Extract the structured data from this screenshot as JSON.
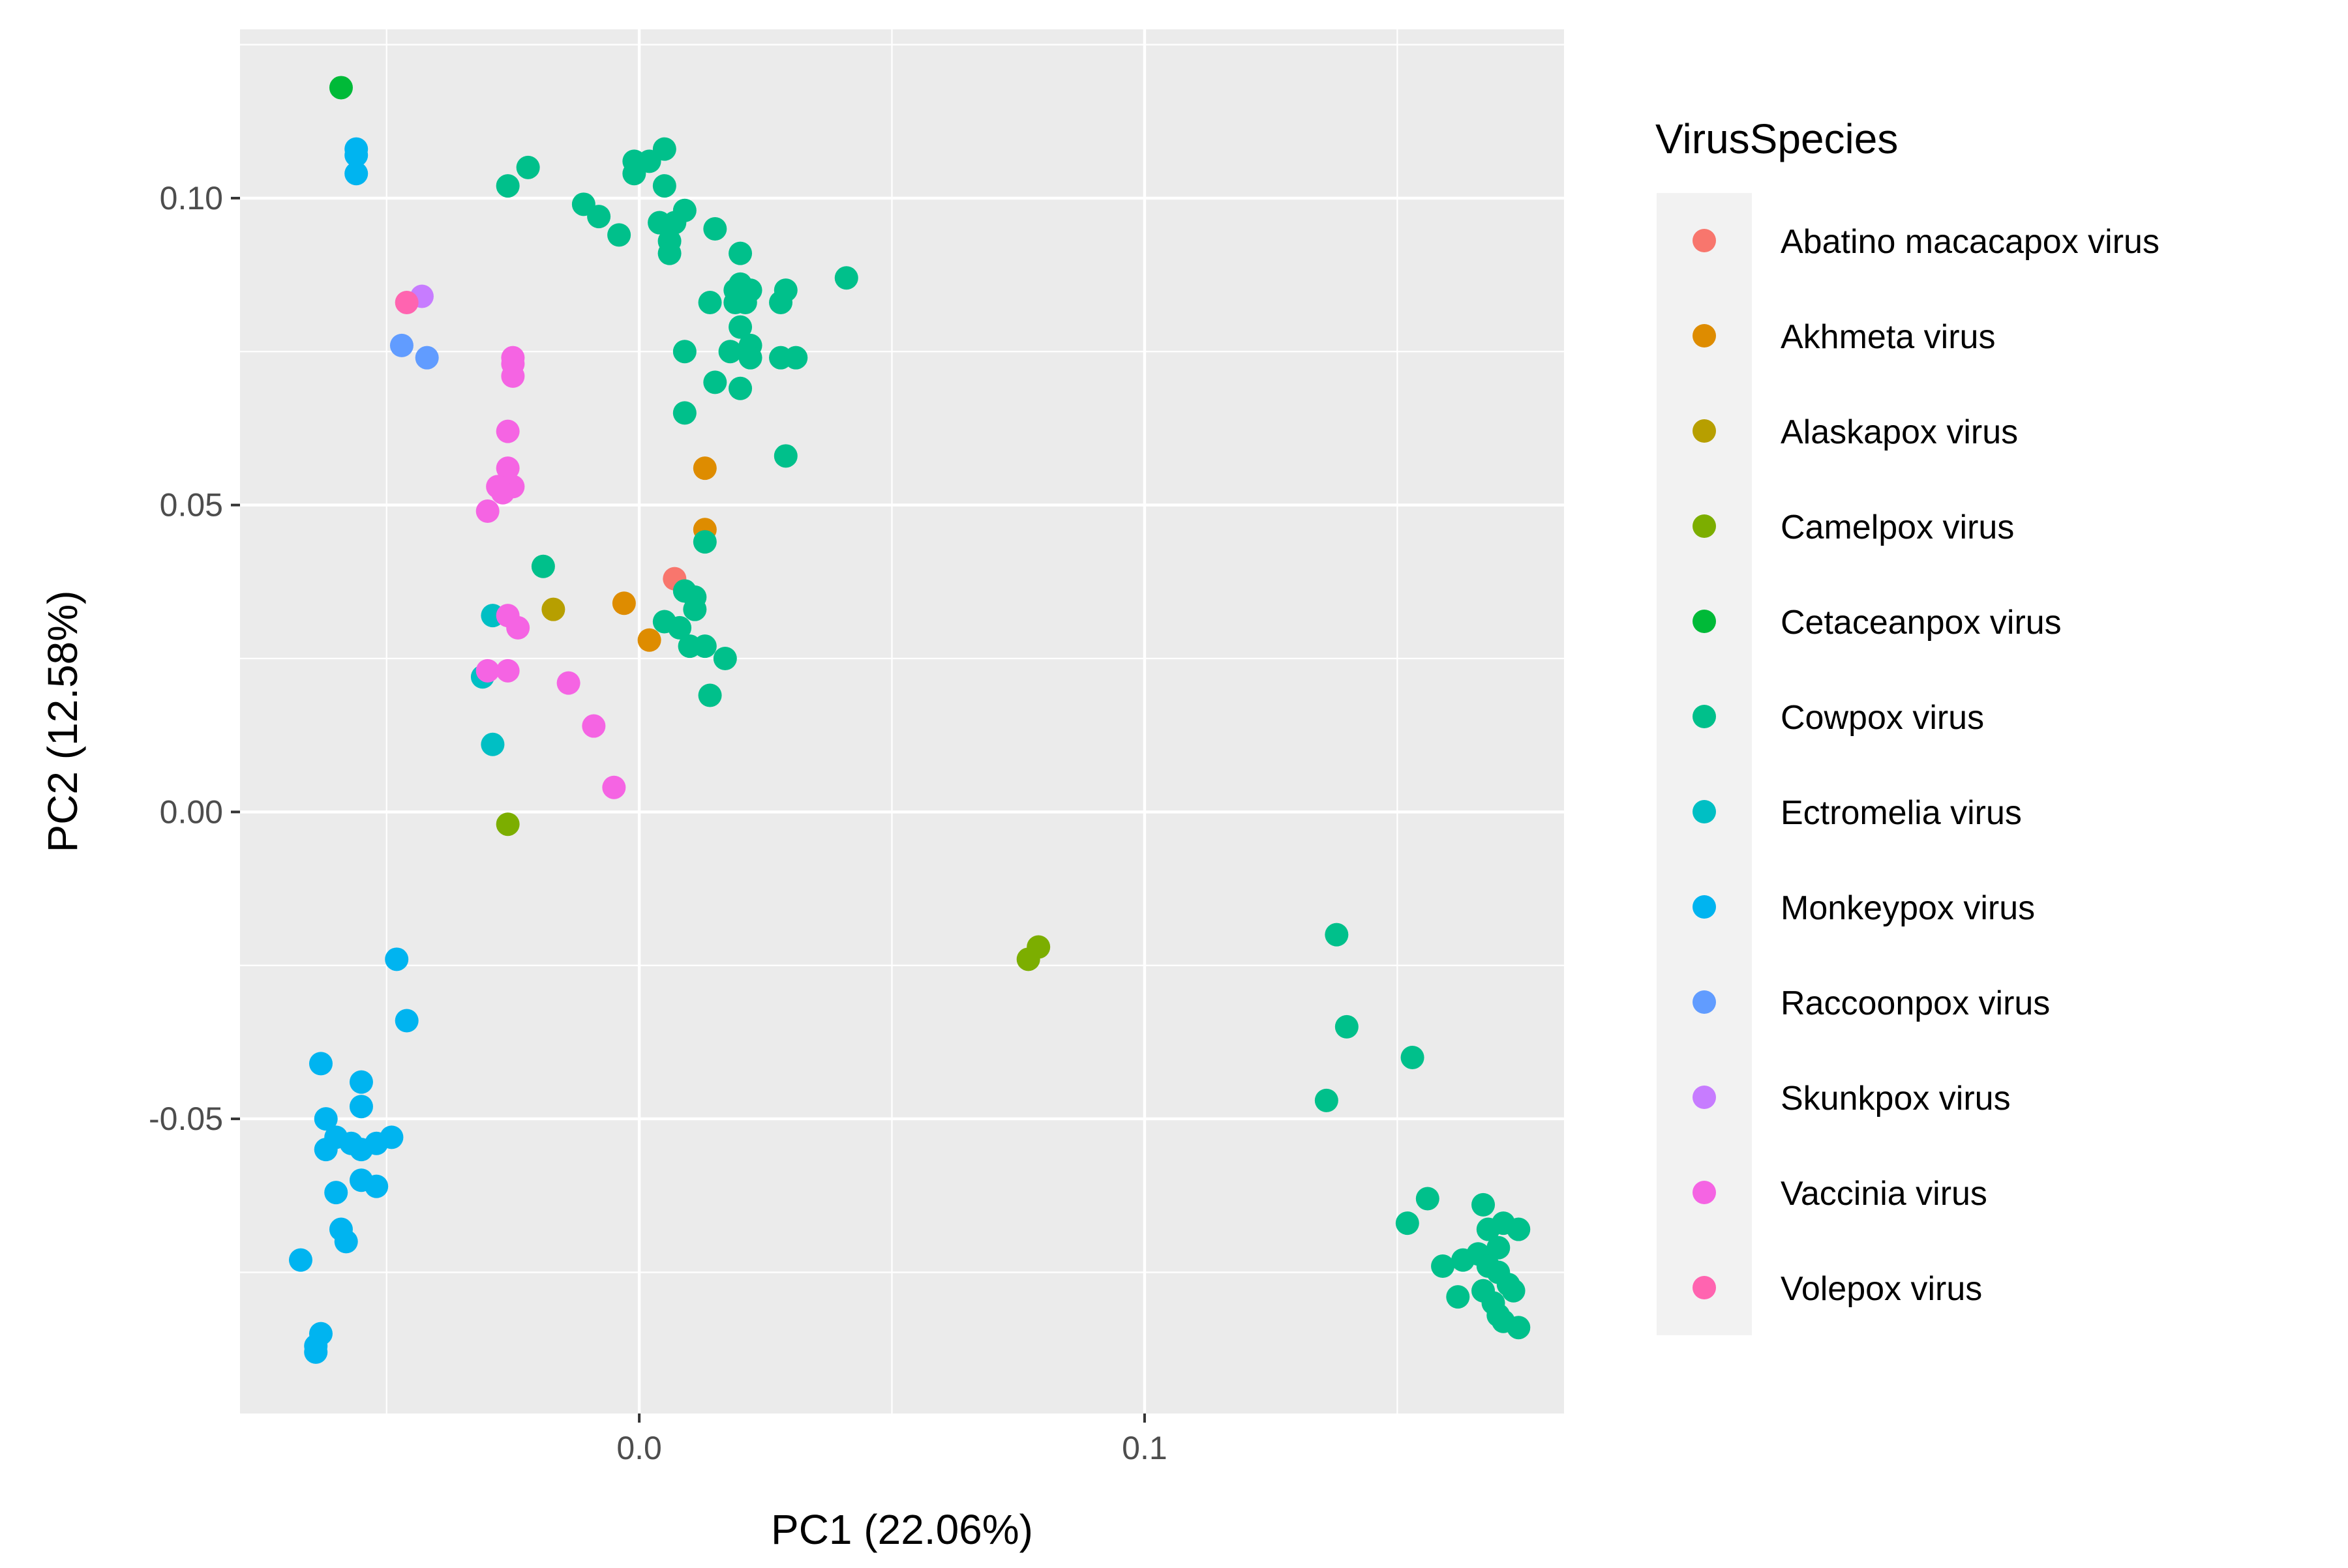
{
  "chart_data": {
    "type": "scatter",
    "xlabel": "PC1 (22.06%)",
    "ylabel": "PC2 (12.58%)",
    "xlim": [
      -0.079,
      0.183
    ],
    "ylim": [
      -0.098,
      0.1275
    ],
    "x_ticks": [
      {
        "value": 0.0,
        "label": "0.0"
      },
      {
        "value": 0.1,
        "label": "0.1"
      }
    ],
    "y_ticks": [
      {
        "value": -0.05,
        "label": "-0.05"
      },
      {
        "value": 0.0,
        "label": "0.00"
      },
      {
        "value": 0.05,
        "label": "0.05"
      },
      {
        "value": 0.1,
        "label": "0.10"
      }
    ],
    "grid": true,
    "legend": {
      "title": "VirusSpecies",
      "position": "right"
    },
    "series": [
      {
        "name": "Abatino macacapox virus",
        "color": "#F8766D",
        "points": [
          [
            0.007,
            0.038
          ]
        ]
      },
      {
        "name": "Akhmeta virus",
        "color": "#DE8C00",
        "points": [
          [
            0.013,
            0.056
          ],
          [
            0.013,
            0.046
          ],
          [
            -0.003,
            0.034
          ],
          [
            0.002,
            0.028
          ]
        ]
      },
      {
        "name": "Alaskapox virus",
        "color": "#B79F00",
        "points": [
          [
            -0.017,
            0.033
          ]
        ]
      },
      {
        "name": "Camelpox virus",
        "color": "#7CAE00",
        "points": [
          [
            -0.026,
            -0.002
          ],
          [
            0.079,
            -0.022
          ],
          [
            0.077,
            -0.024
          ]
        ]
      },
      {
        "name": "Cetaceanpox virus",
        "color": "#00BA38",
        "points": [
          [
            -0.059,
            0.118
          ]
        ]
      },
      {
        "name": "Cowpox virus",
        "color": "#00C08B",
        "points": [
          [
            -0.026,
            0.102
          ],
          [
            -0.022,
            0.105
          ],
          [
            -0.011,
            0.099
          ],
          [
            -0.008,
            0.097
          ],
          [
            -0.004,
            0.094
          ],
          [
            -0.001,
            0.106
          ],
          [
            -0.001,
            0.104
          ],
          [
            0.002,
            0.106
          ],
          [
            0.005,
            0.108
          ],
          [
            0.005,
            0.102
          ],
          [
            0.004,
            0.096
          ],
          [
            0.007,
            0.096
          ],
          [
            0.006,
            0.093
          ],
          [
            0.006,
            0.091
          ],
          [
            0.009,
            0.098
          ],
          [
            0.015,
            0.095
          ],
          [
            0.02,
            0.091
          ],
          [
            0.014,
            0.083
          ],
          [
            0.019,
            0.085
          ],
          [
            0.02,
            0.086
          ],
          [
            0.019,
            0.083
          ],
          [
            0.021,
            0.083
          ],
          [
            0.022,
            0.085
          ],
          [
            0.02,
            0.079
          ],
          [
            0.022,
            0.076
          ],
          [
            0.018,
            0.075
          ],
          [
            0.022,
            0.074
          ],
          [
            0.009,
            0.075
          ],
          [
            0.015,
            0.07
          ],
          [
            0.02,
            0.069
          ],
          [
            0.028,
            0.083
          ],
          [
            0.029,
            0.085
          ],
          [
            0.028,
            0.074
          ],
          [
            0.031,
            0.074
          ],
          [
            0.041,
            0.087
          ],
          [
            0.009,
            0.065
          ],
          [
            0.029,
            0.058
          ],
          [
            0.013,
            0.044
          ],
          [
            -0.019,
            0.04
          ],
          [
            0.009,
            0.036
          ],
          [
            0.011,
            0.035
          ],
          [
            0.005,
            0.031
          ],
          [
            0.008,
            0.03
          ],
          [
            0.011,
            0.033
          ],
          [
            0.01,
            0.027
          ],
          [
            0.013,
            0.027
          ],
          [
            0.017,
            0.025
          ],
          [
            0.014,
            0.019
          ],
          [
            0.138,
            -0.02
          ],
          [
            0.14,
            -0.035
          ],
          [
            0.153,
            -0.04
          ],
          [
            0.136,
            -0.047
          ],
          [
            0.152,
            -0.067
          ],
          [
            0.156,
            -0.063
          ],
          [
            0.167,
            -0.064
          ],
          [
            0.168,
            -0.068
          ],
          [
            0.171,
            -0.067
          ],
          [
            0.174,
            -0.068
          ],
          [
            0.159,
            -0.074
          ],
          [
            0.163,
            -0.073
          ],
          [
            0.166,
            -0.072
          ],
          [
            0.17,
            -0.071
          ],
          [
            0.168,
            -0.074
          ],
          [
            0.17,
            -0.075
          ],
          [
            0.172,
            -0.077
          ],
          [
            0.162,
            -0.079
          ],
          [
            0.167,
            -0.078
          ],
          [
            0.169,
            -0.08
          ],
          [
            0.17,
            -0.082
          ],
          [
            0.171,
            -0.083
          ],
          [
            0.173,
            -0.078
          ],
          [
            0.174,
            -0.084
          ]
        ]
      },
      {
        "name": "Ectromelia virus",
        "color": "#00BFC4",
        "points": [
          [
            -0.029,
            0.032
          ],
          [
            -0.031,
            0.022
          ],
          [
            -0.029,
            0.011
          ]
        ]
      },
      {
        "name": "Monkeypox virus",
        "color": "#00B4F0",
        "points": [
          [
            -0.056,
            0.108
          ],
          [
            -0.056,
            0.107
          ],
          [
            -0.056,
            0.104
          ],
          [
            -0.048,
            -0.024
          ],
          [
            -0.046,
            -0.034
          ],
          [
            -0.063,
            -0.041
          ],
          [
            -0.055,
            -0.044
          ],
          [
            -0.062,
            -0.05
          ],
          [
            -0.055,
            -0.048
          ],
          [
            -0.06,
            -0.053
          ],
          [
            -0.057,
            -0.054
          ],
          [
            -0.049,
            -0.053
          ],
          [
            -0.052,
            -0.054
          ],
          [
            -0.055,
            -0.055
          ],
          [
            -0.062,
            -0.055
          ],
          [
            -0.06,
            -0.062
          ],
          [
            -0.055,
            -0.06
          ],
          [
            -0.052,
            -0.061
          ],
          [
            -0.059,
            -0.068
          ],
          [
            -0.058,
            -0.07
          ],
          [
            -0.067,
            -0.073
          ],
          [
            -0.063,
            -0.085
          ],
          [
            -0.064,
            -0.088
          ],
          [
            -0.064,
            -0.087
          ]
        ]
      },
      {
        "name": "Raccoonpox virus",
        "color": "#619CFF",
        "points": [
          [
            -0.047,
            0.076
          ],
          [
            -0.042,
            0.074
          ]
        ]
      },
      {
        "name": "Skunkpox virus",
        "color": "#C77CFF",
        "points": [
          [
            -0.043,
            0.084
          ]
        ]
      },
      {
        "name": "Vaccinia virus",
        "color": "#F564E3",
        "points": [
          [
            -0.025,
            0.074
          ],
          [
            -0.025,
            0.073
          ],
          [
            -0.025,
            0.071
          ],
          [
            -0.026,
            0.062
          ],
          [
            -0.026,
            0.056
          ],
          [
            -0.028,
            0.053
          ],
          [
            -0.025,
            0.053
          ],
          [
            -0.027,
            0.052
          ],
          [
            -0.03,
            0.049
          ],
          [
            -0.026,
            0.032
          ],
          [
            -0.024,
            0.03
          ],
          [
            -0.03,
            0.023
          ],
          [
            -0.026,
            0.023
          ],
          [
            -0.014,
            0.021
          ],
          [
            -0.009,
            0.014
          ],
          [
            -0.005,
            0.004
          ]
        ]
      },
      {
        "name": "Volepox virus",
        "color": "#FF64B0",
        "points": [
          [
            -0.046,
            0.083
          ]
        ]
      }
    ]
  }
}
